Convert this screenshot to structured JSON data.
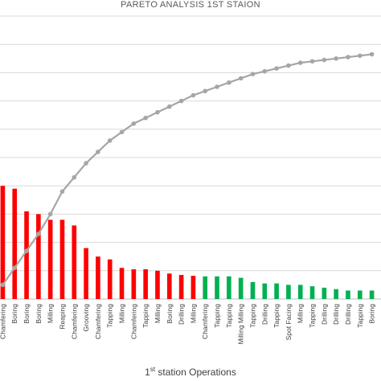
{
  "chart_data": {
    "type": "bar",
    "title": "PARETO ANALYSIS 1ST STAION",
    "xlabel": {
      "prefix": "1",
      "sup": "st",
      "rest": " station Operations"
    },
    "ylabel": "",
    "ylim": [
      0,
      100
    ],
    "grid": true,
    "categories": [
      "Chamfering",
      "Boring",
      "Boring",
      "Boring",
      "Milling",
      "Reaping",
      "Chamfering",
      "Grooving",
      "Chamfering",
      "Tapping",
      "Milling",
      "Chamfering",
      "Tapping",
      "Milling",
      "Boring",
      "Drilling",
      "Milling",
      "Chamfering",
      "Tapping",
      "Tapping",
      "Milling Milling",
      "Tapping",
      "Drilling",
      "Tapping",
      "Spot Facing",
      "Milling",
      "Tapping",
      "Drilling",
      "Drilling",
      "Drilling",
      "Tapping",
      "Boring"
    ],
    "series": [
      {
        "type": "bar",
        "values": [
          40,
          39,
          31,
          30,
          28,
          28,
          26,
          18,
          15,
          14,
          11,
          10.5,
          10.5,
          10,
          9,
          8.5,
          8.2,
          8,
          8,
          8,
          7.5,
          6,
          5.5,
          5.5,
          5,
          5,
          4.5,
          4,
          3.5,
          3,
          3,
          3
        ],
        "colors": [
          "#ff0000",
          "#ff0000",
          "#ff0000",
          "#ff0000",
          "#ff0000",
          "#ff0000",
          "#ff0000",
          "#ff0000",
          "#ff0000",
          "#ff0000",
          "#ff0000",
          "#ff0000",
          "#ff0000",
          "#ff0000",
          "#ff0000",
          "#ff0000",
          "#ff0000",
          "#00b050",
          "#00b050",
          "#00b050",
          "#00b050",
          "#00b050",
          "#00b050",
          "#00b050",
          "#00b050",
          "#00b050",
          "#00b050",
          "#00b050",
          "#00b050",
          "#00b050",
          "#00b050",
          "#00b050"
        ]
      },
      {
        "type": "line",
        "color": "#a6a6a6",
        "values": [
          5,
          11,
          17,
          23,
          30,
          38,
          43,
          48,
          52,
          56,
          59,
          62,
          64,
          66,
          68,
          70,
          72,
          73.5,
          75,
          76.5,
          78,
          79.5,
          80.5,
          81.5,
          82.5,
          83.5,
          84,
          84.5,
          85,
          85.5,
          86,
          86.5
        ]
      }
    ]
  }
}
